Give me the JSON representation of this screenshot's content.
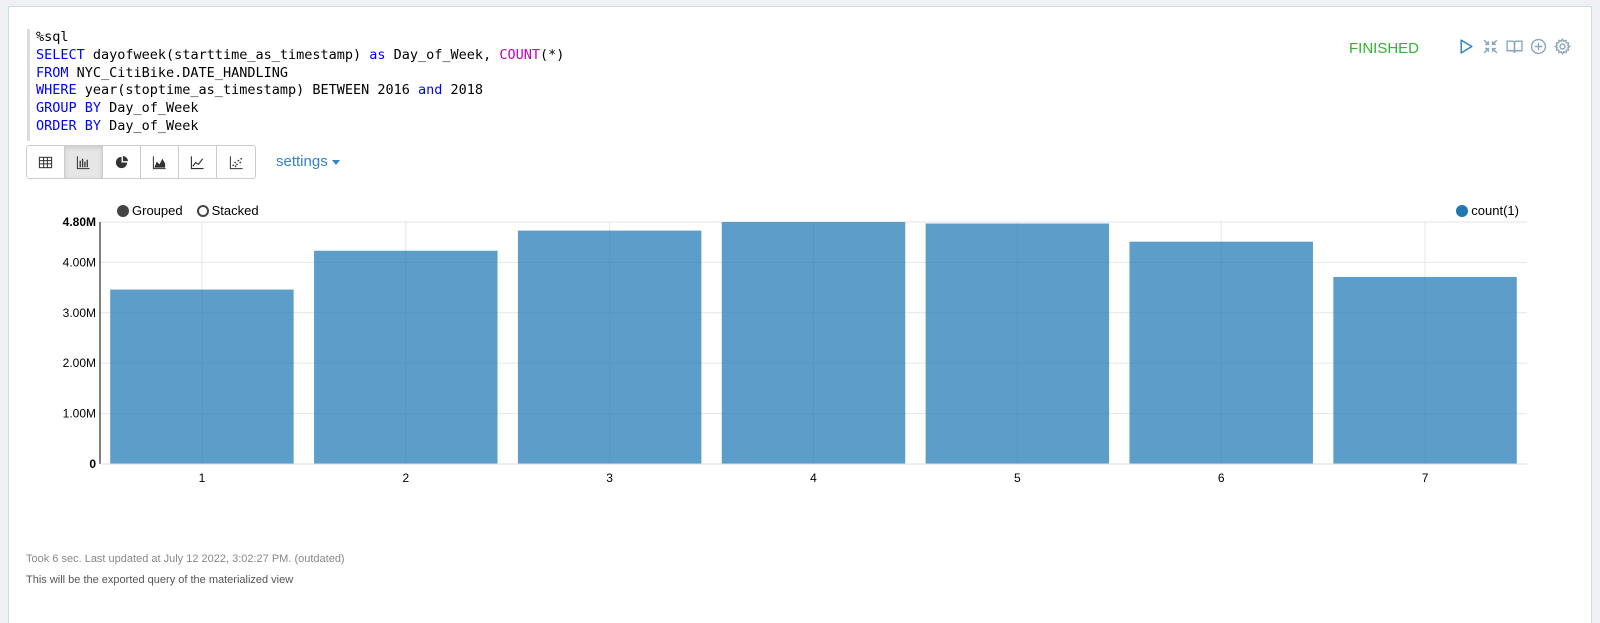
{
  "editor": {
    "lines": [
      [
        {
          "t": "%sql",
          "c": "plain"
        }
      ],
      [
        {
          "t": "SELECT",
          "c": "kw"
        },
        {
          "t": " dayofweek(starttime_as_timestamp) ",
          "c": "plain"
        },
        {
          "t": "as",
          "c": "kw"
        },
        {
          "t": " Day_of_Week, ",
          "c": "plain"
        },
        {
          "t": "COUNT",
          "c": "fn"
        },
        {
          "t": "(*)",
          "c": "plain"
        }
      ],
      [
        {
          "t": "FROM",
          "c": "kw"
        },
        {
          "t": " NYC_CitiBike.DATE_HANDLING",
          "c": "plain"
        }
      ],
      [
        {
          "t": "WHERE",
          "c": "kw"
        },
        {
          "t": " year(stoptime_as_timestamp) BETWEEN 2016 ",
          "c": "plain"
        },
        {
          "t": "and",
          "c": "kw"
        },
        {
          "t": " 2018",
          "c": "plain"
        }
      ],
      [
        {
          "t": "GROUP BY",
          "c": "kw"
        },
        {
          "t": " Day_of_Week",
          "c": "plain"
        }
      ],
      [
        {
          "t": "ORDER BY",
          "c": "kw"
        },
        {
          "t": " Day_of_Week",
          "c": "plain"
        }
      ]
    ]
  },
  "status": "FINISHED",
  "controls": [
    "run-icon",
    "collapse-icon",
    "book-icon",
    "add-icon",
    "gear-icon"
  ],
  "toolbar": {
    "buttons": [
      "table-icon",
      "bar-chart-icon",
      "pie-chart-icon",
      "area-chart-icon",
      "line-chart-icon",
      "scatter-chart-icon"
    ],
    "active_index": 1,
    "settings_label": "settings"
  },
  "chart_options": {
    "grouped_label": "Grouped",
    "stacked_label": "Stacked",
    "selected": "Grouped"
  },
  "colors": {
    "bar": "#1f77b4",
    "status": "#2fb52f",
    "link": "#3383c6"
  },
  "chart_data": {
    "type": "bar",
    "categories": [
      "1",
      "2",
      "3",
      "4",
      "5",
      "6",
      "7"
    ],
    "series": [
      {
        "name": "count(1)",
        "values": [
          3460000,
          4230000,
          4630000,
          4800000,
          4770000,
          4410000,
          3710000
        ]
      }
    ],
    "ylim": [
      0,
      4800000
    ],
    "yticks": [
      0,
      1000000,
      2000000,
      3000000,
      4000000,
      4800000
    ],
    "ytick_labels": [
      "0",
      "1.00M",
      "2.00M",
      "3.00M",
      "4.00M",
      "4.80M"
    ],
    "legend_position": "top-right",
    "grid": true
  },
  "footer": {
    "timing": "Took 6 sec. Last updated at July 12 2022, 3:02:27 PM. (outdated)",
    "note": "This will be the exported query of the materialized view"
  }
}
